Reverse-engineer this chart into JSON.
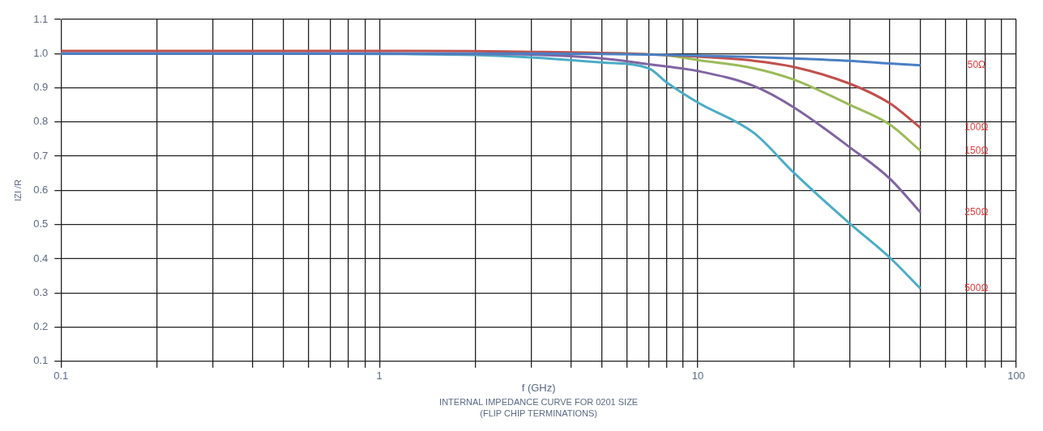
{
  "chart_data": {
    "type": "line",
    "xlabel": "f (GHz)",
    "ylabel": "IZI /R",
    "annotations": [
      "INTERNAL IMPEDANCE CURVE FOR 0201 SIZE",
      "(FLIP CHIP TERMINATIONS)"
    ],
    "x": [
      0.1,
      0.5,
      1,
      2,
      3,
      5,
      7,
      8,
      10,
      15,
      20,
      30,
      40,
      50
    ],
    "series": [
      {
        "name": "50Ω",
        "color": "#4a7fc4",
        "values": [
          1.0,
          1.0,
          1.0,
          1.0,
          1.0,
          0.999,
          0.997,
          0.996,
          0.994,
          0.99,
          0.986,
          0.979,
          0.971,
          0.966
        ]
      },
      {
        "name": "100Ω",
        "color": "#c0504d",
        "values": [
          1.008,
          1.008,
          1.008,
          1.007,
          1.005,
          1.002,
          0.998,
          0.996,
          0.991,
          0.979,
          0.961,
          0.912,
          0.855,
          0.783
        ]
      },
      {
        "name": "150Ω",
        "color": "#9bbb59",
        "values": [
          null,
          null,
          null,
          null,
          1.004,
          1.002,
          0.998,
          0.995,
          0.981,
          0.957,
          0.924,
          0.85,
          0.793,
          0.716
        ]
      },
      {
        "name": "250Ω",
        "color": "#8064a2",
        "values": [
          1.0,
          1.0,
          1.0,
          0.999,
          0.997,
          0.986,
          0.969,
          0.962,
          0.949,
          0.905,
          0.843,
          0.726,
          0.635,
          0.536
        ]
      },
      {
        "name": "500Ω",
        "color": "#4bacc6",
        "values": [
          1.0,
          1.0,
          0.999,
          0.996,
          0.989,
          0.974,
          0.957,
          0.915,
          0.857,
          0.768,
          0.652,
          0.503,
          0.404,
          0.313
        ]
      }
    ],
    "log": "x",
    "xlim": [
      0.1,
      100
    ],
    "xticks": [
      0.1,
      {
        "value": 0.2,
        "label": null
      },
      {
        "value": 0.3,
        "label": null
      },
      {
        "value": 0.4,
        "label": null
      },
      {
        "value": 0.5,
        "label": null
      },
      {
        "value": 0.6,
        "label": null
      },
      {
        "value": 0.7,
        "label": null
      },
      {
        "value": 0.8,
        "label": null
      },
      {
        "value": 0.9,
        "label": null
      },
      1,
      {
        "value": 2,
        "label": null
      },
      {
        "value": 3,
        "label": null
      },
      {
        "value": 4,
        "label": null
      },
      {
        "value": 5,
        "label": null
      },
      {
        "value": 6,
        "label": null
      },
      {
        "value": 7,
        "label": null
      },
      {
        "value": 8,
        "label": null
      },
      {
        "value": 9,
        "label": null
      },
      10,
      {
        "value": 20,
        "label": null
      },
      {
        "value": 30,
        "label": null
      },
      {
        "value": 40,
        "label": null
      },
      {
        "value": 50,
        "label": null
      },
      {
        "value": 60,
        "label": null
      },
      {
        "value": 70,
        "label": null
      },
      {
        "value": 80,
        "label": null
      },
      {
        "value": 90,
        "label": null
      },
      100
    ],
    "ylim": [
      0.1,
      1.1
    ],
    "yticks": [
      0.1,
      0.2,
      0.3,
      0.4,
      0.5,
      0.6,
      0.7,
      0.8,
      0.9,
      {
        "value": 1.0,
        "label": "1.0"
      },
      1.1
    ],
    "grid": true,
    "legend": false,
    "marker": "none",
    "line_style": "solid"
  }
}
